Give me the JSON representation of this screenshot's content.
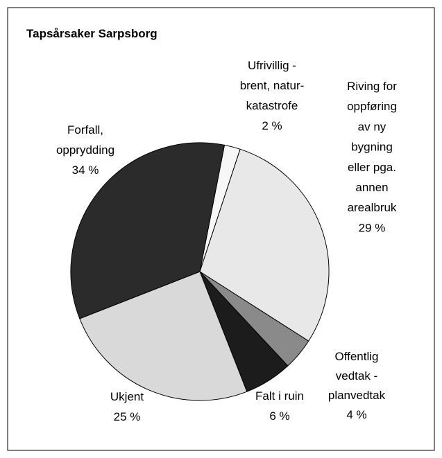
{
  "chart_data": {
    "type": "pie",
    "title": "Tapsårsaker Sarpsborg",
    "categories": [
      [
        "Ufrivillig -",
        "brent, natur-",
        "katastrofe"
      ],
      [
        "Riving for",
        "oppføring",
        "av ny",
        "bygning",
        "eller pga.",
        "annen",
        "arealbruk"
      ],
      [
        "Offentlig",
        "vedtak -",
        "planvedtak"
      ],
      [
        "Falt i ruin"
      ],
      [
        "Ukjent"
      ],
      [
        "Forfall,",
        "opprydding"
      ]
    ],
    "values": [
      2,
      29,
      4,
      6,
      25,
      34
    ],
    "value_labels": [
      "2 %",
      "29 %",
      "4 %",
      "6 %",
      "25 %",
      "34 %"
    ],
    "colors": [
      "#f7f7f7",
      "#e8e8e8",
      "#8a8a8a",
      "#1c1c1c",
      "#d9d9d9",
      "#2b2b2b"
    ]
  }
}
